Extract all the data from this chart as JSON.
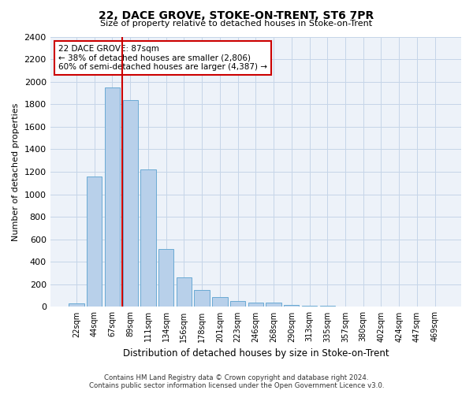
{
  "title": "22, DACE GROVE, STOKE-ON-TRENT, ST6 7PR",
  "subtitle": "Size of property relative to detached houses in Stoke-on-Trent",
  "xlabel": "Distribution of detached houses by size in Stoke-on-Trent",
  "ylabel": "Number of detached properties",
  "bar_labels": [
    "22sqm",
    "44sqm",
    "67sqm",
    "89sqm",
    "111sqm",
    "134sqm",
    "156sqm",
    "178sqm",
    "201sqm",
    "223sqm",
    "246sqm",
    "268sqm",
    "290sqm",
    "313sqm",
    "335sqm",
    "357sqm",
    "380sqm",
    "402sqm",
    "424sqm",
    "447sqm",
    "469sqm"
  ],
  "bar_values": [
    30,
    1155,
    1950,
    1840,
    1220,
    515,
    265,
    150,
    85,
    50,
    40,
    38,
    15,
    12,
    8,
    5,
    5,
    5,
    3,
    3,
    3
  ],
  "bar_color": "#b8d0ea",
  "bar_edge_color": "#6aaad4",
  "vline_x_index": 3,
  "vline_color": "#cc0000",
  "ylim": [
    0,
    2400
  ],
  "yticks": [
    0,
    200,
    400,
    600,
    800,
    1000,
    1200,
    1400,
    1600,
    1800,
    2000,
    2200,
    2400
  ],
  "annotation_title": "22 DACE GROVE: 87sqm",
  "annotation_line1": "← 38% of detached houses are smaller (2,806)",
  "annotation_line2": "60% of semi-detached houses are larger (4,387) →",
  "annotation_box_color": "#ffffff",
  "annotation_box_edge": "#cc0000",
  "footer_line1": "Contains HM Land Registry data © Crown copyright and database right 2024.",
  "footer_line2": "Contains public sector information licensed under the Open Government Licence v3.0.",
  "bg_color": "#edf2f9",
  "grid_color": "#c5d5e8"
}
